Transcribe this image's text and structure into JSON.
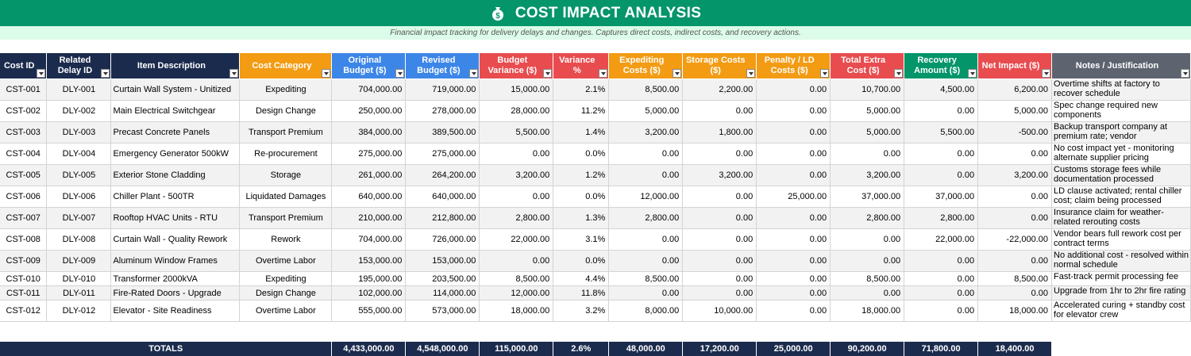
{
  "header": {
    "title": "COST IMPACT ANALYSIS",
    "icon": "money-bag-icon",
    "background": "#04956a"
  },
  "subtitle": "Financial impact tracking for delivery delays and changes. Captures direct costs, indirect costs, and recovery actions.",
  "columns": [
    {
      "label": "Cost ID",
      "color": "#1b2b4d"
    },
    {
      "label": "Related Delay ID",
      "color": "#1b2b4d"
    },
    {
      "label": "Item Description",
      "color": "#1b2b4d"
    },
    {
      "label": "Cost Category",
      "color": "#f39b13"
    },
    {
      "label": "Original Budget ($)",
      "color": "#3c86e8"
    },
    {
      "label": "Revised Budget ($)",
      "color": "#3c86e8"
    },
    {
      "label": "Budget Variance ($)",
      "color": "#e84c4f"
    },
    {
      "label": "Variance %",
      "color": "#e84c4f"
    },
    {
      "label": "Expediting Costs ($)",
      "color": "#f39b13"
    },
    {
      "label": "Storage Costs ($)",
      "color": "#f39b13"
    },
    {
      "label": "Penalty / LD Costs ($)",
      "color": "#f39b13"
    },
    {
      "label": "Total Extra Cost ($)",
      "color": "#e84c4f"
    },
    {
      "label": "Recovery Amount ($)",
      "color": "#04956a"
    },
    {
      "label": "Net Impact ($)",
      "color": "#e84c4f"
    },
    {
      "label": "Notes / Justification",
      "color": "#5d6470"
    }
  ],
  "rows": [
    {
      "id": "CST-001",
      "delay": "DLY-001",
      "desc": "Curtain Wall System - Unitized",
      "category": "Expediting",
      "orig": "704,000.00",
      "revised": "719,000.00",
      "variance": "15,000.00",
      "pct": "2.1%",
      "exped": "8,500.00",
      "storage": "2,200.00",
      "penalty": "0.00",
      "total": "10,700.00",
      "recovery": "4,500.00",
      "net": "6,200.00",
      "notes": "Overtime shifts at factory to recover schedule"
    },
    {
      "id": "CST-002",
      "delay": "DLY-002",
      "desc": "Main Electrical Switchgear",
      "category": "Design Change",
      "orig": "250,000.00",
      "revised": "278,000.00",
      "variance": "28,000.00",
      "pct": "11.2%",
      "exped": "5,000.00",
      "storage": "0.00",
      "penalty": "0.00",
      "total": "5,000.00",
      "recovery": "0.00",
      "net": "5,000.00",
      "notes": "Spec change required new components"
    },
    {
      "id": "CST-003",
      "delay": "DLY-003",
      "desc": "Precast Concrete Panels",
      "category": "Transport Premium",
      "orig": "384,000.00",
      "revised": "389,500.00",
      "variance": "5,500.00",
      "pct": "1.4%",
      "exped": "3,200.00",
      "storage": "1,800.00",
      "penalty": "0.00",
      "total": "5,000.00",
      "recovery": "5,500.00",
      "net": "-500.00",
      "notes": "Backup transport company at premium rate; vendor"
    },
    {
      "id": "CST-004",
      "delay": "DLY-004",
      "desc": "Emergency Generator 500kW",
      "category": "Re-procurement",
      "orig": "275,000.00",
      "revised": "275,000.00",
      "variance": "0.00",
      "pct": "0.0%",
      "exped": "0.00",
      "storage": "0.00",
      "penalty": "0.00",
      "total": "0.00",
      "recovery": "0.00",
      "net": "0.00",
      "notes": "No cost impact yet - monitoring alternate supplier pricing"
    },
    {
      "id": "CST-005",
      "delay": "DLY-005",
      "desc": "Exterior Stone Cladding",
      "category": "Storage",
      "orig": "261,000.00",
      "revised": "264,200.00",
      "variance": "3,200.00",
      "pct": "1.2%",
      "exped": "0.00",
      "storage": "3,200.00",
      "penalty": "0.00",
      "total": "3,200.00",
      "recovery": "0.00",
      "net": "3,200.00",
      "notes": "Customs storage fees while documentation processed"
    },
    {
      "id": "CST-006",
      "delay": "DLY-006",
      "desc": "Chiller Plant - 500TR",
      "category": "Liquidated Damages",
      "orig": "640,000.00",
      "revised": "640,000.00",
      "variance": "0.00",
      "pct": "0.0%",
      "exped": "12,000.00",
      "storage": "0.00",
      "penalty": "25,000.00",
      "total": "37,000.00",
      "recovery": "37,000.00",
      "net": "0.00",
      "notes": "LD clause activated; rental chiller cost; claim being processed"
    },
    {
      "id": "CST-007",
      "delay": "DLY-007",
      "desc": "Rooftop HVAC Units - RTU",
      "category": "Transport Premium",
      "orig": "210,000.00",
      "revised": "212,800.00",
      "variance": "2,800.00",
      "pct": "1.3%",
      "exped": "2,800.00",
      "storage": "0.00",
      "penalty": "0.00",
      "total": "2,800.00",
      "recovery": "2,800.00",
      "net": "0.00",
      "notes": "Insurance claim for weather-related rerouting costs"
    },
    {
      "id": "CST-008",
      "delay": "DLY-008",
      "desc": "Curtain Wall - Quality Rework",
      "category": "Rework",
      "orig": "704,000.00",
      "revised": "726,000.00",
      "variance": "22,000.00",
      "pct": "3.1%",
      "exped": "0.00",
      "storage": "0.00",
      "penalty": "0.00",
      "total": "0.00",
      "recovery": "22,000.00",
      "net": "-22,000.00",
      "notes": "Vendor bears full rework cost per contract terms"
    },
    {
      "id": "CST-009",
      "delay": "DLY-009",
      "desc": "Aluminum Window Frames",
      "category": "Overtime Labor",
      "orig": "153,000.00",
      "revised": "153,000.00",
      "variance": "0.00",
      "pct": "0.0%",
      "exped": "0.00",
      "storage": "0.00",
      "penalty": "0.00",
      "total": "0.00",
      "recovery": "0.00",
      "net": "0.00",
      "notes": "No additional cost - resolved within normal schedule"
    },
    {
      "id": "CST-010",
      "delay": "DLY-010",
      "desc": "Transformer 2000kVA",
      "category": "Expediting",
      "orig": "195,000.00",
      "revised": "203,500.00",
      "variance": "8,500.00",
      "pct": "4.4%",
      "exped": "8,500.00",
      "storage": "0.00",
      "penalty": "0.00",
      "total": "8,500.00",
      "recovery": "0.00",
      "net": "8,500.00",
      "notes": "Fast-track permit processing fee"
    },
    {
      "id": "CST-011",
      "delay": "DLY-011",
      "desc": "Fire-Rated Doors - Upgrade",
      "category": "Design Change",
      "orig": "102,000.00",
      "revised": "114,000.00",
      "variance": "12,000.00",
      "pct": "11.8%",
      "exped": "0.00",
      "storage": "0.00",
      "penalty": "0.00",
      "total": "0.00",
      "recovery": "0.00",
      "net": "0.00",
      "notes": "Upgrade from 1hr to 2hr fire rating"
    },
    {
      "id": "CST-012",
      "delay": "DLY-012",
      "desc": "Elevator - Site Readiness",
      "category": "Overtime Labor",
      "orig": "555,000.00",
      "revised": "573,000.00",
      "variance": "18,000.00",
      "pct": "3.2%",
      "exped": "8,000.00",
      "storage": "10,000.00",
      "penalty": "0.00",
      "total": "18,000.00",
      "recovery": "0.00",
      "net": "18,000.00",
      "notes": "Accelerated curing + standby cost for elevator crew"
    }
  ],
  "totals": {
    "label": "TOTALS",
    "orig": "4,433,000.00",
    "revised": "4,548,000.00",
    "variance": "115,000.00",
    "pct": "2.6%",
    "exped": "48,000.00",
    "storage": "17,200.00",
    "penalty": "25,000.00",
    "total": "90,200.00",
    "recovery": "71,800.00",
    "net": "18,400.00"
  }
}
